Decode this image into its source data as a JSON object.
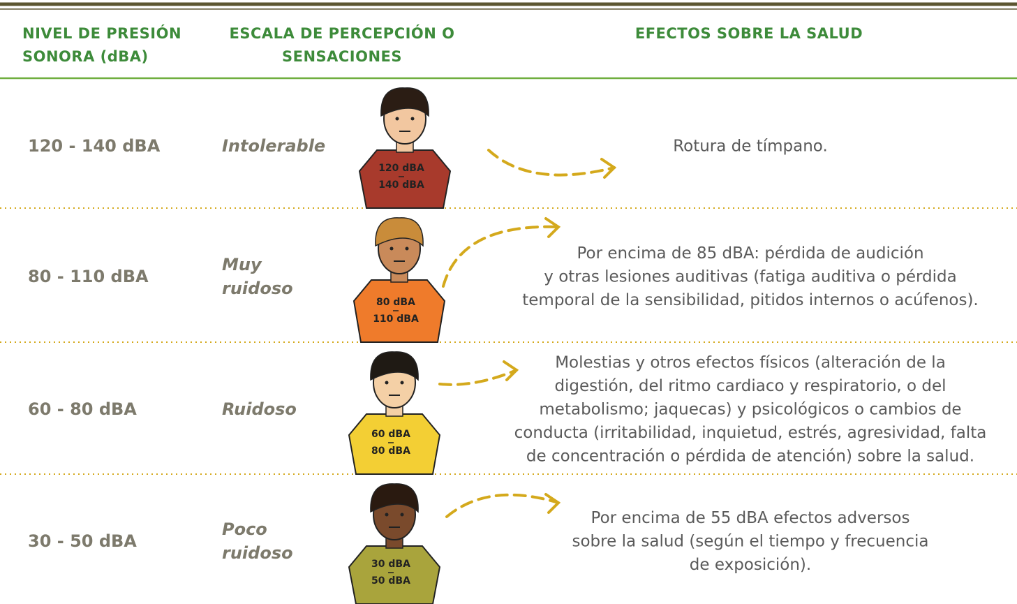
{
  "header": {
    "columns": [
      [
        "NIVEL DE PRESIÓN",
        "SONORA (dBA)"
      ],
      [
        "ESCALA DE PERCEPCIÓN O",
        "SENSACIONES"
      ],
      [
        "EFECTOS SOBRE LA SALUD"
      ]
    ]
  },
  "rows": [
    {
      "level": "120 - 140 dBA",
      "perception": [
        "Intolerable"
      ],
      "shirt": [
        "120 dBA",
        "140 dBA"
      ],
      "effects": [
        "Rotura de tímpano."
      ]
    },
    {
      "level": "80 - 110 dBA",
      "perception": [
        "Muy",
        "ruidoso"
      ],
      "shirt": [
        "80 dBA",
        "110 dBA"
      ],
      "effects": [
        "Por encima de 85 dBA: pérdida de audición",
        "y otras lesiones auditivas (fatiga auditiva o pérdida",
        "temporal de la sensibilidad, pitidos internos o acúfenos)."
      ]
    },
    {
      "level": "60 - 80 dBA",
      "perception": [
        "Ruidoso"
      ],
      "shirt": [
        "60 dBA",
        "80 dBA"
      ],
      "effects": [
        "Molestias y otros efectos físicos (alteración de la",
        "digestión, del ritmo cardiaco y respiratorio, o del",
        "metabolismo; jaquecas) y psicológicos o cambios de",
        "conducta (irritabilidad, inquietud, estrés, agresividad, falta",
        "de concentración o pérdida de atención) sobre la salud."
      ]
    },
    {
      "level": "30 - 50 dBA",
      "perception": [
        "Poco",
        "ruidoso"
      ],
      "shirt": [
        "30 dBA",
        "50 dBA"
      ],
      "effects": [
        "Por encima de 55 dBA efectos adversos",
        "sobre la salud (según el tiempo y frecuencia",
        "de exposición)."
      ]
    }
  ]
}
